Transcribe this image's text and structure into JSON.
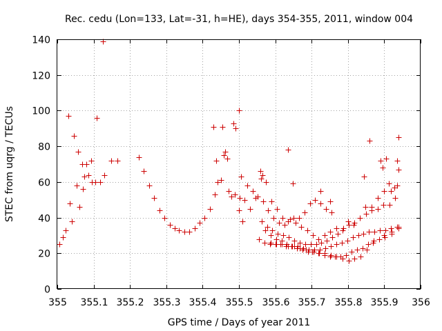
{
  "chart_data": {
    "type": "scatter",
    "title": "Rec. cedu (Lon=133, Lat=-31, h=HE), days 354-355, 2011, window 004",
    "xlabel": "GPS time / Days of year 2011",
    "ylabel": "STEC from uqrg / TECUs",
    "xlim": [
      355,
      356
    ],
    "ylim": [
      0,
      140
    ],
    "x_ticks": [
      "355",
      "355.1",
      "355.2",
      "355.3",
      "355.4",
      "355.5",
      "355.6",
      "355.7",
      "355.8",
      "355.9",
      "356"
    ],
    "y_ticks": [
      "0",
      "20",
      "40",
      "60",
      "80",
      "100",
      "120",
      "140"
    ],
    "grid": true,
    "legend": "none",
    "marker": "plus",
    "color": "#cc0000",
    "series": [
      {
        "x": [
          355.005,
          355.015,
          355.023,
          355.035,
          355.04,
          355.053,
          355.06,
          355.07,
          355.074,
          355.085,
          355.095,
          355.105,
          355.118,
          355.13,
          355.148,
          355.165,
          355.03,
          355.045,
          355.057,
          355.068,
          355.08,
          355.093,
          355.108,
          355.125,
          355.225,
          355.238,
          355.252,
          355.267,
          355.282,
          355.295,
          355.31,
          355.323,
          355.335,
          355.35,
          355.363,
          355.378,
          355.392,
          355.405,
          355.42,
          355.433,
          355.442,
          355.45,
          355.458,
          355.462,
          355.472,
          355.48,
          355.488,
          355.5,
          355.51,
          355.437,
          355.455,
          355.467,
          355.485,
          355.502,
          355.515,
          355.53,
          355.545,
          355.56,
          355.575,
          355.59,
          355.605,
          355.62,
          355.635,
          355.65,
          355.665,
          355.68,
          355.695,
          355.71,
          355.725,
          355.74,
          355.755,
          355.49,
          355.505,
          355.522,
          355.538,
          355.552,
          355.567,
          355.58,
          355.595,
          355.61,
          355.625,
          355.64,
          355.655,
          355.672,
          355.688,
          355.703,
          355.718,
          355.735,
          355.75,
          355.768,
          355.785,
          355.8,
          355.815,
          355.832,
          355.848,
          355.865,
          355.882,
          355.9,
          355.918,
          355.935,
          355.562,
          355.577,
          355.592,
          355.607,
          355.622,
          355.637,
          355.652,
          355.667,
          355.682,
          355.697,
          355.712,
          355.727,
          355.742,
          355.757,
          355.772,
          355.787,
          355.802,
          355.818,
          355.833,
          355.85,
          355.865,
          355.882,
          355.898,
          355.915,
          355.93,
          355.572,
          355.587,
          355.602,
          355.617,
          355.632,
          355.647,
          355.662,
          355.677,
          355.692,
          355.708,
          355.723,
          355.738,
          355.753,
          355.768,
          355.783,
          355.798,
          355.813,
          355.828,
          355.843,
          355.858,
          355.873,
          355.888,
          355.903,
          355.918,
          355.935,
          355.555,
          355.57,
          355.585,
          355.6,
          355.615,
          355.63,
          355.645,
          355.66,
          355.675,
          355.69,
          355.705,
          355.72,
          355.735,
          355.75,
          355.765,
          355.78,
          355.795,
          355.81,
          355.825,
          355.84,
          355.855,
          355.87,
          355.885,
          355.9,
          355.92,
          355.94,
          355.587,
          355.602,
          355.618,
          355.635,
          355.652,
          355.668,
          355.685,
          355.702,
          355.718,
          355.735,
          355.752,
          355.768,
          355.785,
          355.802,
          355.818,
          355.835,
          355.852,
          355.868,
          355.885,
          355.902,
          355.92,
          355.94,
          355.5,
          355.558,
          355.565,
          355.635,
          355.648,
          355.725,
          355.75,
          355.86,
          355.89,
          355.905,
          355.94,
          355.845,
          355.895,
          355.912,
          355.928,
          355.935,
          355.94,
          355.43
        ],
        "y": [
          25,
          29,
          33,
          48,
          38,
          58,
          46,
          56,
          63,
          64,
          60,
          60,
          60,
          64,
          72,
          72,
          97,
          86,
          77,
          70,
          70,
          72,
          96,
          139,
          74,
          66,
          58,
          51,
          44,
          40,
          36,
          34,
          33,
          32,
          32,
          34,
          37,
          40,
          45,
          53,
          60,
          61,
          75,
          77,
          55,
          52,
          53,
          44,
          38,
          72,
          91,
          73,
          93,
          51,
          50,
          45,
          51,
          62,
          60,
          49,
          45,
          40,
          38,
          40,
          40,
          43,
          48,
          50,
          48,
          45,
          43,
          90,
          63,
          58,
          55,
          52,
          49,
          44,
          40,
          37,
          36,
          39,
          37,
          35,
          33,
          30,
          28,
          30,
          32,
          34,
          33,
          38,
          36,
          40,
          46,
          46,
          51,
          55,
          55,
          58,
          38,
          35,
          33,
          31,
          30,
          29,
          27,
          26,
          25,
          25,
          25,
          26,
          27,
          29,
          31,
          34,
          36,
          37,
          40,
          42,
          44,
          45,
          47,
          47,
          51,
          33,
          30,
          28,
          27,
          25,
          24,
          24,
          23,
          22,
          22,
          22,
          23,
          24,
          25,
          26,
          27,
          29,
          30,
          31,
          32,
          32,
          33,
          33,
          34,
          35,
          28,
          26,
          25,
          25,
          25,
          24,
          24,
          23,
          22,
          21,
          21,
          20,
          19,
          18,
          18,
          18,
          19,
          21,
          22,
          23,
          25,
          27,
          28,
          30,
          32,
          35,
          26,
          25,
          25,
          24,
          24,
          23,
          22,
          21,
          20,
          20,
          19,
          18,
          17,
          16,
          17,
          18,
          22,
          26,
          28,
          29,
          31,
          34,
          100,
          66,
          64,
          78,
          59,
          55,
          49,
          83,
          72,
          73,
          85,
          63,
          68,
          59,
          57,
          72,
          67,
          91
        ]
      }
    ]
  }
}
